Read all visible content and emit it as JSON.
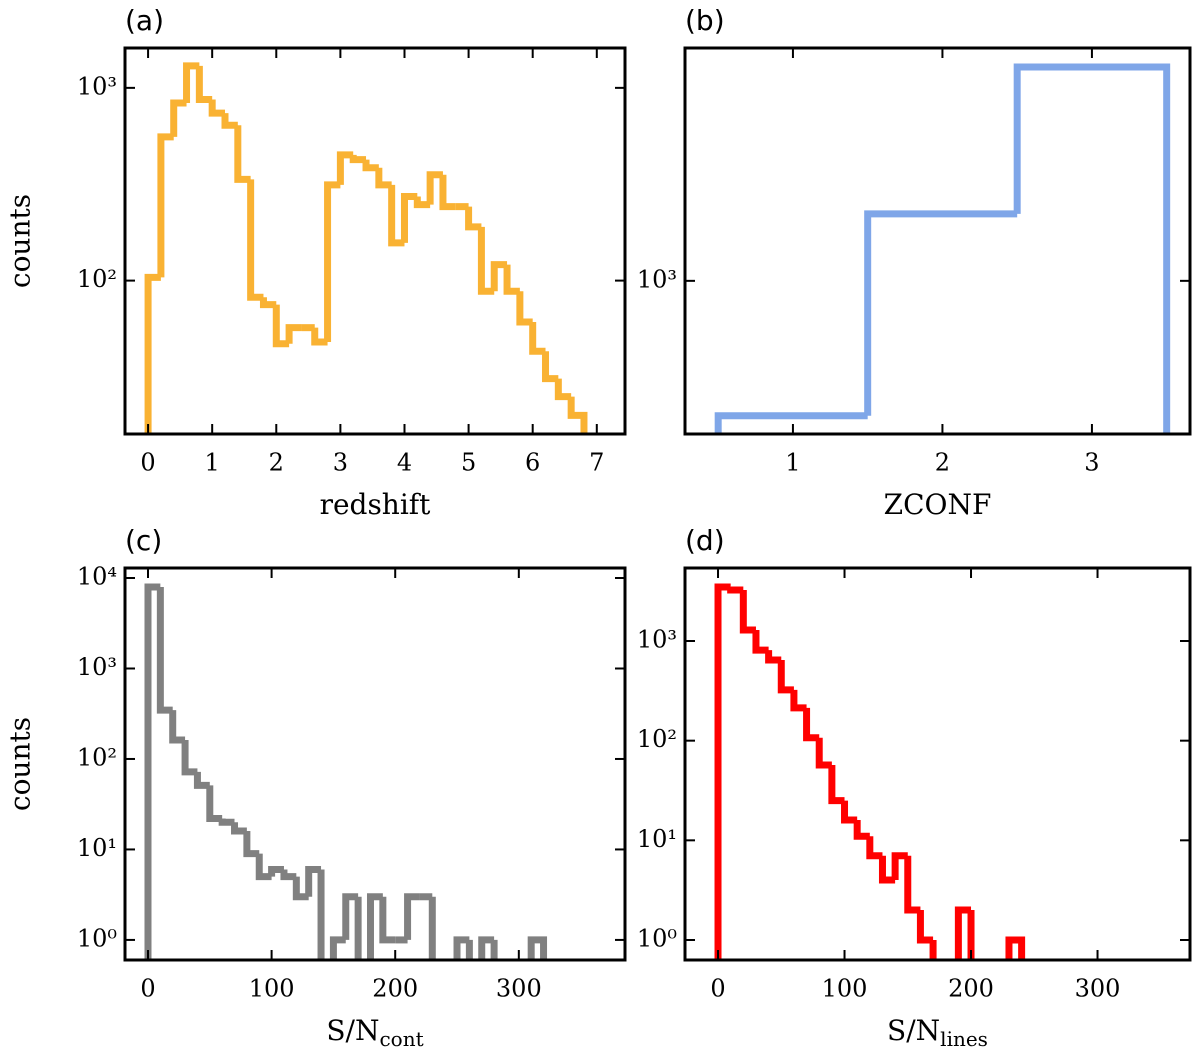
{
  "chart_data": [
    {
      "type": "histogram",
      "title": "(a)",
      "xlabel": "redshift",
      "ylabel": "counts",
      "color": "#f9b233",
      "yscale": "log",
      "bins": [
        0,
        0.2,
        0.4,
        0.6,
        0.8,
        1,
        1.2,
        1.4,
        1.6,
        1.8,
        2,
        2.2,
        2.4,
        2.6,
        2.8,
        3,
        3.2,
        3.4,
        3.6,
        3.8,
        4,
        4.2,
        4.4,
        4.6,
        4.8,
        5,
        5.2,
        5.4,
        5.6,
        5.8,
        6,
        6.2,
        6.4,
        6.6,
        6.8
      ],
      "values": [
        104,
        557,
        835,
        1300,
        870,
        740,
        640,
        335,
        82,
        75,
        47,
        57,
        57,
        48,
        314,
        449,
        424,
        385,
        314,
        157,
        273,
        248,
        354,
        242,
        242,
        190,
        88,
        121,
        88,
        61,
        43,
        31,
        25,
        20
      ],
      "xlim": [
        -0.36,
        7.44
      ],
      "xticks": [
        0,
        1,
        2,
        3,
        4,
        5,
        6,
        7
      ],
      "ylim": [
        16,
        1610
      ],
      "yticks": [
        {
          "value": 100,
          "label": "10²"
        },
        {
          "value": 1000,
          "label": "10³"
        }
      ]
    },
    {
      "type": "histogram",
      "title": "(b)",
      "xlabel": "ZCONF",
      "color": "#7fa6e8",
      "yscale": "log",
      "bins": [
        0.5,
        1.5,
        2.5,
        3.5
      ],
      "values": [
        297,
        1828,
        6850
      ],
      "xlim": [
        0.278,
        3.656
      ],
      "xticks": [
        1,
        2,
        3
      ],
      "ylim": [
        252,
        8130
      ],
      "yticks": [
        {
          "value": 1000,
          "label": "10³"
        }
      ]
    },
    {
      "type": "histogram",
      "title": "(c)",
      "xlabel": "S/N",
      "xlabel_subscript": "cont",
      "ylabel": "counts",
      "color": "#808080",
      "yscale": "log",
      "bins": [
        0,
        10,
        20,
        30,
        40,
        50,
        60,
        70,
        80,
        90,
        100,
        110,
        120,
        130,
        140,
        150,
        160,
        170,
        180,
        190,
        200,
        210,
        220,
        230,
        240,
        250,
        260,
        270,
        280,
        290,
        300,
        310,
        320
      ],
      "values": [
        7950,
        347,
        162,
        72,
        51,
        22,
        20,
        16,
        9,
        5,
        6,
        5,
        3,
        6,
        0,
        1,
        3,
        0,
        3,
        1,
        1,
        3,
        3,
        0,
        0,
        1,
        0,
        1,
        0,
        0,
        0,
        1
      ],
      "xlim": [
        -18.6,
        385.9
      ],
      "xticks": [
        0,
        100,
        200,
        300
      ],
      "ylim": [
        0.6,
        12900
      ],
      "yticks": [
        {
          "value": 1,
          "label": "10⁰"
        },
        {
          "value": 10,
          "label": "10¹"
        },
        {
          "value": 100,
          "label": "10²"
        },
        {
          "value": 1000,
          "label": "10³"
        },
        {
          "value": 10000,
          "label": "10⁴"
        }
      ]
    },
    {
      "type": "histogram",
      "title": "(d)",
      "xlabel": "S/N",
      "xlabel_subscript": "lines",
      "color": "#ff0000",
      "yscale": "log",
      "bins": [
        0,
        10,
        20,
        30,
        40,
        50,
        60,
        70,
        80,
        90,
        100,
        110,
        120,
        130,
        140,
        150,
        160,
        170,
        180,
        190,
        200,
        210,
        220,
        230,
        240
      ],
      "values": [
        3480,
        3250,
        1290,
        810,
        645,
        323,
        213,
        107,
        57,
        25,
        16,
        11,
        7,
        4,
        7,
        2,
        1,
        0,
        0,
        2,
        0,
        0,
        0,
        1
      ],
      "xlim": [
        -26.1,
        373.1
      ],
      "xticks": [
        0,
        100,
        200,
        300
      ],
      "ylim": [
        0.63,
        5400
      ],
      "yticks": [
        {
          "value": 1,
          "label": "10⁰"
        },
        {
          "value": 10,
          "label": "10¹"
        },
        {
          "value": 100,
          "label": "10²"
        },
        {
          "value": 1000,
          "label": "10³"
        }
      ]
    }
  ]
}
